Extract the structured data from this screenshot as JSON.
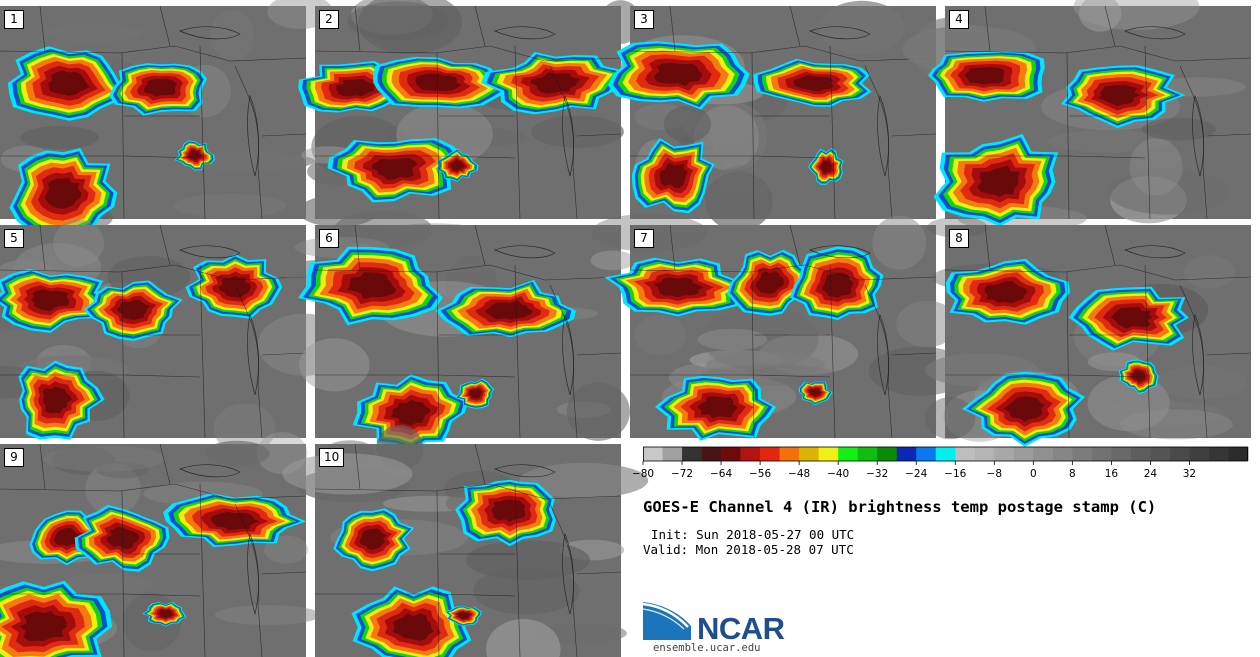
{
  "panels": [
    {
      "label": "1",
      "seed": 11
    },
    {
      "label": "2",
      "seed": 23
    },
    {
      "label": "3",
      "seed": 37
    },
    {
      "label": "4",
      "seed": 41
    },
    {
      "label": "5",
      "seed": 53
    },
    {
      "label": "6",
      "seed": 67
    },
    {
      "label": "7",
      "seed": 71
    },
    {
      "label": "8",
      "seed": 83
    },
    {
      "label": "9",
      "seed": 97
    },
    {
      "label": "10",
      "seed": 101
    }
  ],
  "colorbar": {
    "tick_labels": [
      "−80",
      "−72",
      "−64",
      "−56",
      "−48",
      "−40",
      "−32",
      "−24",
      "−16",
      "−8",
      "0",
      "8",
      "16",
      "24",
      "32"
    ],
    "colors": [
      "#c8c8c8",
      "#a0a0a0",
      "#333333",
      "#4a1414",
      "#6e0a0a",
      "#b51212",
      "#e62510",
      "#f5700a",
      "#dcb400",
      "#f0f012",
      "#14f014",
      "#0fbe0f",
      "#0a8c0a",
      "#0a28b4",
      "#0a78f0",
      "#00f0f0",
      "#bebebe",
      "#b4b4b4",
      "#a8a8a8",
      "#9c9c9c",
      "#909090",
      "#868686",
      "#7c7c7c",
      "#727272",
      "#686868",
      "#5e5e5e",
      "#545454",
      "#4a4a4a",
      "#404040",
      "#363636",
      "#2c2c2c"
    ]
  },
  "title": "GOES-E Channel 4 (IR) brightness temp postage stamp (C)",
  "init": "Init: Sun 2018-05-27 00 UTC",
  "valid": "Valid: Mon 2018-05-28 07 UTC",
  "logo": {
    "text": "NCAR",
    "url": "ensemble.ucar.edu",
    "colors": {
      "swoosh": "#1a75bb",
      "text": "#1f4e8c"
    }
  }
}
